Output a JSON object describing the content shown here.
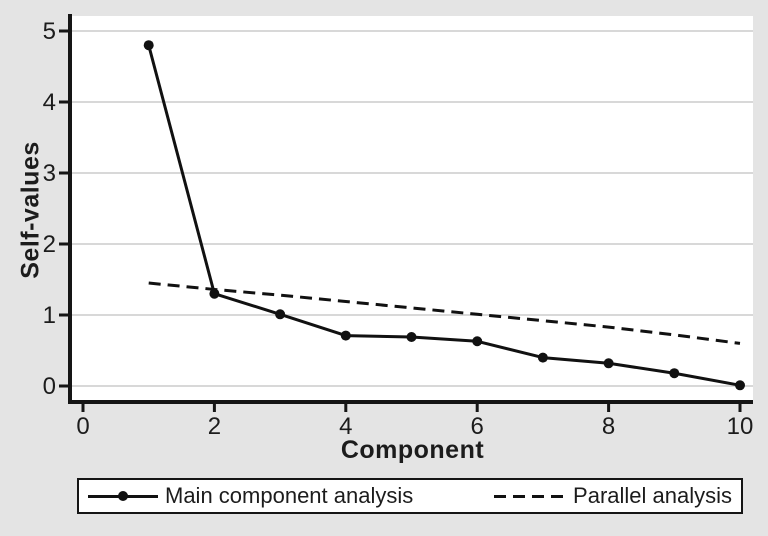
{
  "figure": {
    "background": "#e4e4e4",
    "plot_background": "#ffffff",
    "grid_color": "#d8d8d8",
    "axis_color": "#151515",
    "text_color": "#1c1c1c",
    "series_color": "#111111"
  },
  "chart_data": {
    "type": "line",
    "title": "",
    "xlabel": "Component",
    "ylabel": "Self-values",
    "x": [
      1,
      2,
      3,
      4,
      5,
      6,
      7,
      8,
      9,
      10
    ],
    "xticks": [
      0,
      2,
      4,
      6,
      8,
      10
    ],
    "yticks": [
      0,
      1,
      2,
      3,
      4,
      5
    ],
    "xlim": [
      -0.2,
      10.2
    ],
    "ylim": [
      -0.2,
      5.25
    ],
    "grid": "horizontal",
    "legend_position": "bottom",
    "series": [
      {
        "name": "Main component analysis",
        "line_style": "solid",
        "marker": "circle",
        "values": [
          4.8,
          1.3,
          1.01,
          0.71,
          0.69,
          0.63,
          0.4,
          0.32,
          0.18,
          0.01
        ]
      },
      {
        "name": "Parallel analysis",
        "line_style": "dashed",
        "marker": "none",
        "values": [
          1.45,
          1.36,
          1.28,
          1.19,
          1.1,
          1.01,
          0.92,
          0.83,
          0.72,
          0.6
        ]
      }
    ]
  }
}
